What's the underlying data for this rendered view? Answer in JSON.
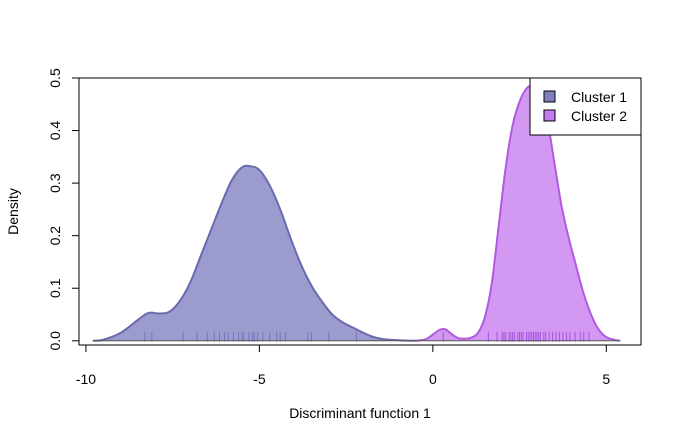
{
  "chart_data": {
    "type": "area",
    "title": "",
    "xlabel": "Discriminant function 1",
    "ylabel": "Density",
    "xlim": [
      -10.2,
      6.0
    ],
    "ylim": [
      -0.008,
      0.5
    ],
    "x_ticks": [
      -10,
      -5,
      0,
      5
    ],
    "x_tick_labels": [
      "-10",
      "-5",
      "0",
      "5"
    ],
    "y_ticks": [
      0.0,
      0.1,
      0.2,
      0.3,
      0.4,
      0.5
    ],
    "y_tick_labels": [
      "0.0",
      "0.1",
      "0.2",
      "0.3",
      "0.4",
      "0.5"
    ],
    "grid": false,
    "legend_position": "top-right",
    "series": [
      {
        "name": "Cluster 1",
        "fill": "#7f7fbf",
        "stroke": "#6a6aaf",
        "rug_color": "#6a6ab8",
        "density": {
          "x": [
            -9.8,
            -9.5,
            -9.0,
            -8.5,
            -8.2,
            -7.9,
            -7.6,
            -7.3,
            -7.0,
            -6.7,
            -6.4,
            -6.1,
            -5.8,
            -5.5,
            -5.25,
            -5.0,
            -4.7,
            -4.4,
            -4.1,
            -3.8,
            -3.5,
            -3.2,
            -2.9,
            -2.6,
            -2.3,
            -2.0,
            -1.7,
            -1.4,
            -1.0,
            -0.5
          ],
          "y": [
            0.0,
            0.002,
            0.015,
            0.04,
            0.053,
            0.052,
            0.055,
            0.075,
            0.11,
            0.16,
            0.21,
            0.26,
            0.305,
            0.33,
            0.332,
            0.325,
            0.295,
            0.25,
            0.195,
            0.145,
            0.105,
            0.075,
            0.05,
            0.035,
            0.025,
            0.015,
            0.007,
            0.003,
            0.001,
            0.0
          ]
        },
        "rug": [
          -8.3,
          -8.1,
          -7.2,
          -6.8,
          -6.5,
          -6.3,
          -6.15,
          -6.0,
          -5.9,
          -5.75,
          -5.6,
          -5.5,
          -5.45,
          -5.3,
          -5.2,
          -5.15,
          -5.05,
          -4.9,
          -4.7,
          -4.5,
          -4.4,
          -4.25,
          -3.6,
          -3.5,
          -3.0,
          -2.2
        ]
      },
      {
        "name": "Cluster 2",
        "fill": "#c77cee",
        "stroke": "#b05ae0",
        "rug_color": "#9b3fd9",
        "density": {
          "x": [
            -0.5,
            -0.2,
            0.0,
            0.2,
            0.35,
            0.5,
            0.7,
            0.9,
            1.1,
            1.3,
            1.5,
            1.7,
            1.9,
            2.1,
            2.3,
            2.5,
            2.7,
            2.9,
            3.1,
            3.3,
            3.5,
            3.7,
            3.9,
            4.1,
            4.3,
            4.5,
            4.7,
            4.9,
            5.1,
            5.4
          ],
          "y": [
            0.0,
            0.003,
            0.012,
            0.021,
            0.022,
            0.015,
            0.006,
            0.004,
            0.006,
            0.015,
            0.045,
            0.11,
            0.22,
            0.33,
            0.41,
            0.455,
            0.48,
            0.485,
            0.47,
            0.42,
            0.34,
            0.26,
            0.2,
            0.15,
            0.1,
            0.06,
            0.03,
            0.012,
            0.004,
            0.0
          ]
        },
        "rug": [
          0.3,
          1.6,
          1.85,
          2.0,
          2.05,
          2.1,
          2.2,
          2.25,
          2.3,
          2.35,
          2.45,
          2.5,
          2.55,
          2.6,
          2.7,
          2.75,
          2.8,
          2.85,
          2.9,
          2.95,
          3.0,
          3.05,
          3.1,
          3.2,
          3.25,
          3.35,
          3.45,
          3.55,
          3.65,
          3.75,
          3.85,
          3.95,
          4.1,
          4.25,
          4.35,
          4.5
        ]
      }
    ]
  }
}
